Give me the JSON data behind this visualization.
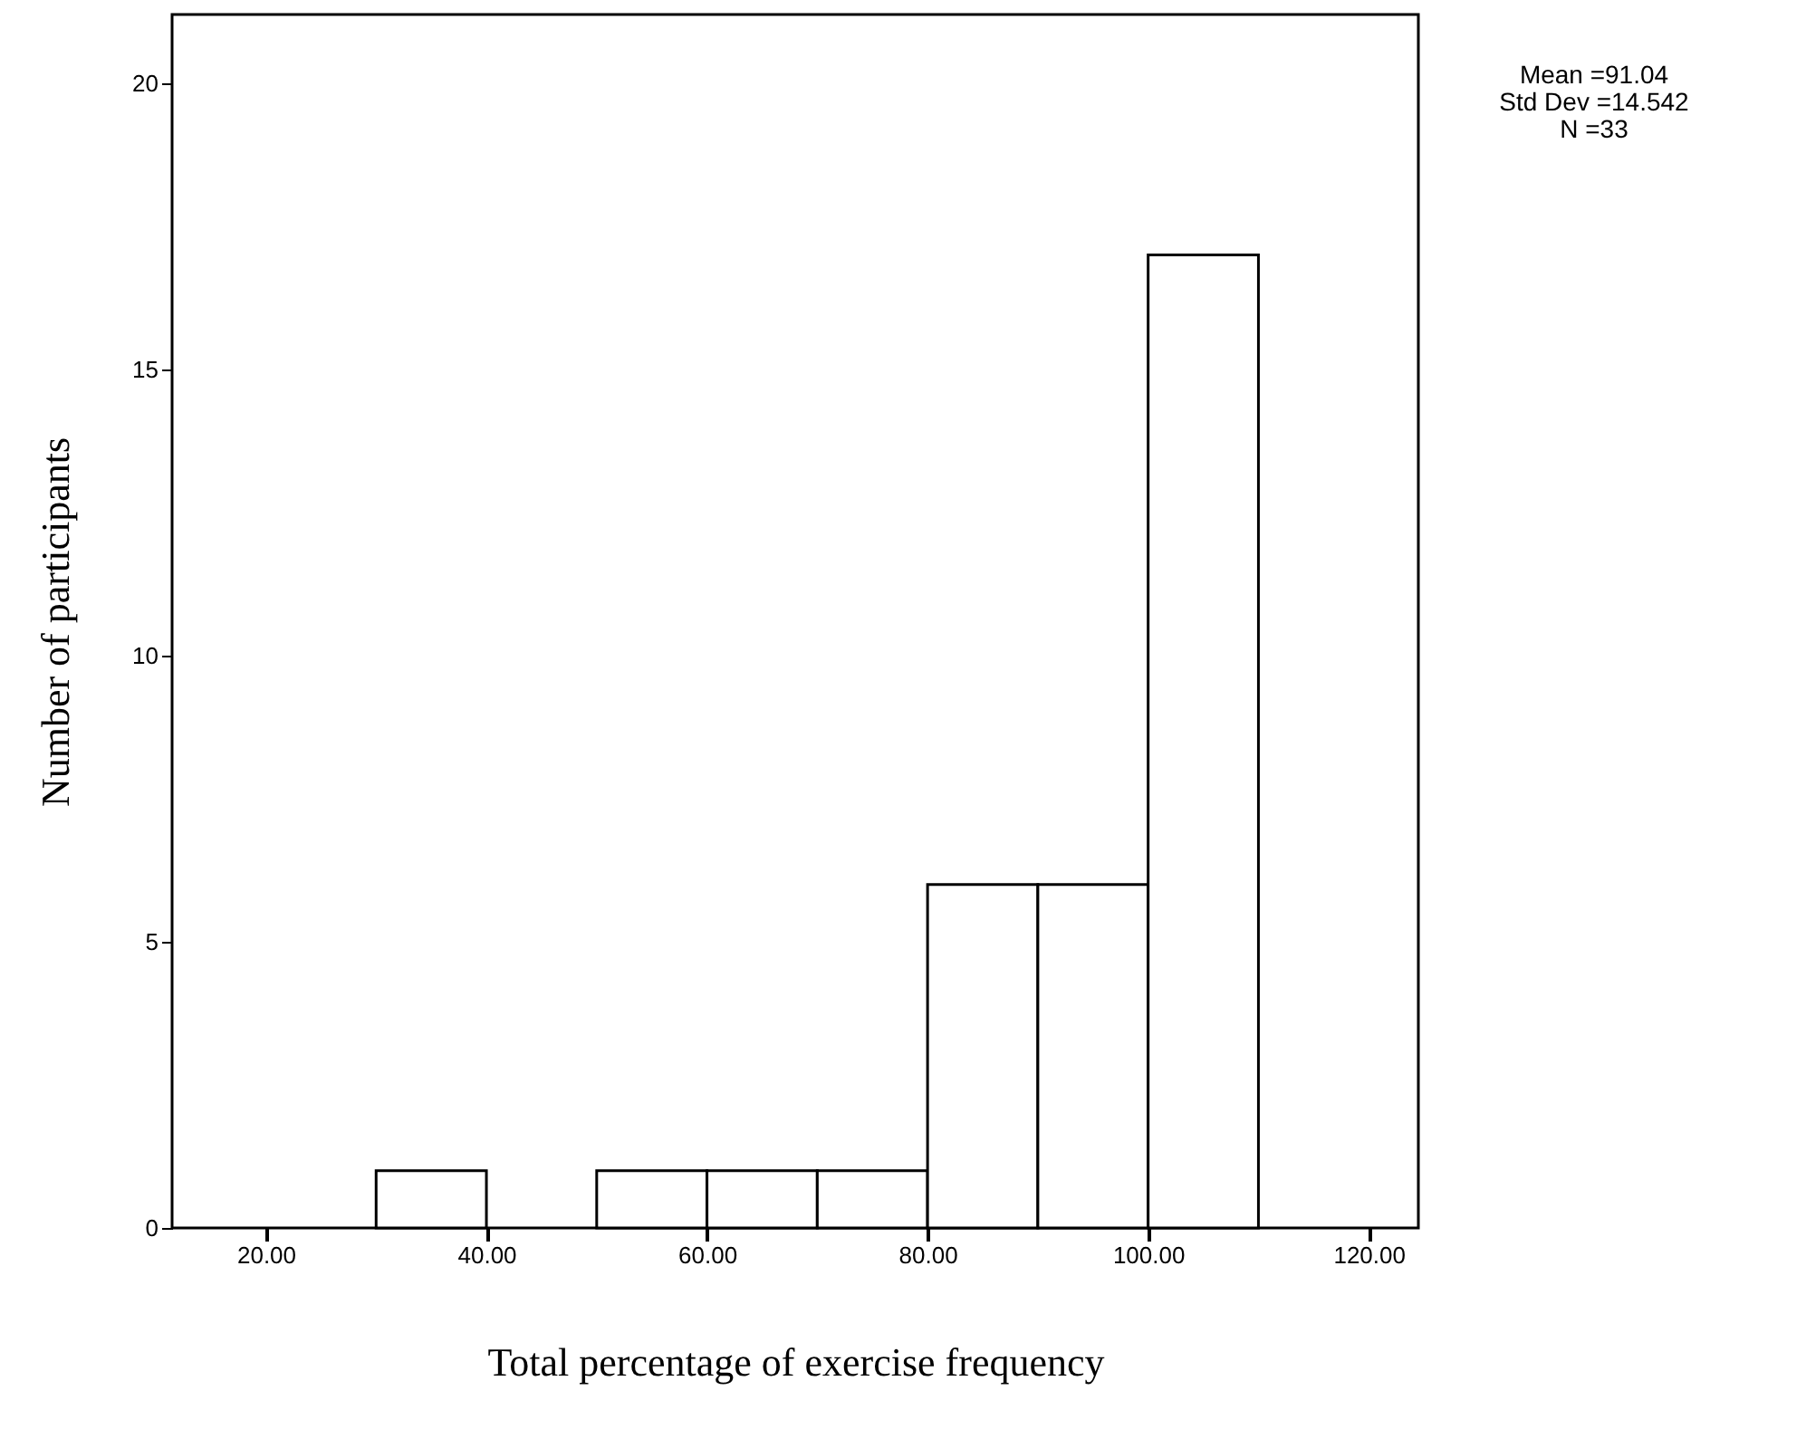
{
  "chart_data": {
    "type": "histogram",
    "xlabel": "Total percentage of exercise frequency",
    "ylabel": "Number of participants",
    "bins": [
      20,
      30,
      40,
      50,
      60,
      70,
      80,
      90,
      100,
      110,
      120
    ],
    "values": [
      0,
      1,
      0,
      1,
      1,
      1,
      6,
      6,
      17,
      0
    ],
    "color": "#ffffff",
    "xlim": [
      11.5,
      124.5
    ],
    "ylim": [
      0,
      21.2
    ],
    "xticks": [
      {
        "value": 20,
        "label": "20.00"
      },
      {
        "value": 40,
        "label": "40.00"
      },
      {
        "value": 60,
        "label": "60.00"
      },
      {
        "value": 80,
        "label": "80.00"
      },
      {
        "value": 100,
        "label": "100.00"
      },
      {
        "value": 120,
        "label": "120.00"
      }
    ],
    "yticks": [
      0,
      5,
      10,
      15,
      20
    ],
    "annotations": [
      "Mean =91.04",
      "Std Dev =14.542",
      "N =33"
    ]
  }
}
